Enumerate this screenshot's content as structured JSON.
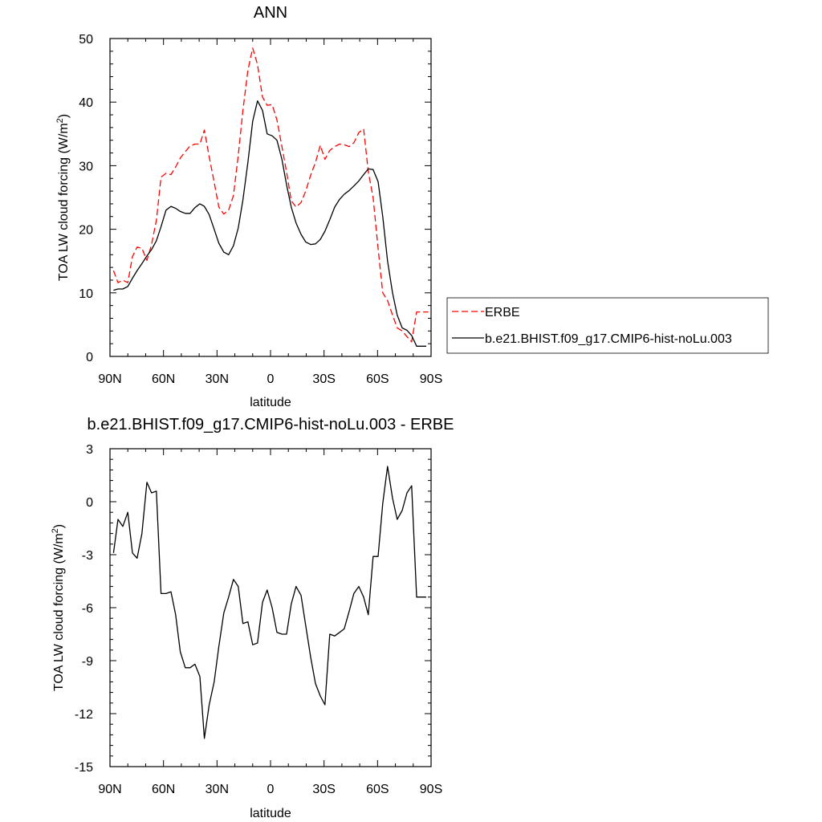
{
  "chart_data": [
    {
      "type": "line",
      "title": "ANN",
      "xlabel": "latitude",
      "ylabel": "TOA LW cloud forcing (W/m",
      "ylabel_sup": "2",
      "ylabel_tail": ")",
      "xlim": [
        90,
        -90
      ],
      "ylim": [
        0,
        50
      ],
      "x_ticks": [
        90,
        60,
        30,
        0,
        -30,
        -60,
        -90
      ],
      "x_tick_labels": [
        "90N",
        "60N",
        "30N",
        "0",
        "30S",
        "60S",
        "90S"
      ],
      "y_ticks": [
        0,
        10,
        20,
        30,
        40,
        50
      ],
      "y_tick_labels": [
        "0",
        "10",
        "20",
        "30",
        "40",
        "50"
      ],
      "legend_position": "right, outside",
      "series": [
        {
          "name": "ERBE",
          "color": "#ff0000",
          "style": "dashed",
          "x": [
            88.0,
            85.5,
            82.8,
            80.0,
            77.4,
            74.8,
            72.1,
            69.3,
            66.7,
            64.0,
            61.4,
            58.6,
            55.8,
            53.2,
            50.6,
            47.8,
            45.1,
            42.4,
            39.6,
            37.1,
            34.4,
            31.6,
            29.0,
            26.2,
            23.5,
            20.8,
            18.1,
            15.5,
            12.7,
            10.0,
            7.3,
            4.5,
            1.9,
            -0.9,
            -3.6,
            -6.4,
            -9.0,
            -11.6,
            -14.3,
            -17.1,
            -19.7,
            -22.5,
            -25.2,
            -27.9,
            -30.5,
            -33.2,
            -36.0,
            -38.7,
            -41.3,
            -44.1,
            -46.7,
            -49.5,
            -52.2,
            -54.8,
            -57.5,
            -60.3,
            -62.9,
            -65.6,
            -68.4,
            -71.0,
            -73.8,
            -76.5,
            -79.1,
            -81.9,
            -84.6,
            -87.3,
            -88.5
          ],
          "y": [
            13.5,
            11.6,
            12.0,
            11.6,
            15.7,
            17.2,
            17.0,
            15.1,
            17.6,
            21.4,
            28.2,
            28.8,
            28.6,
            29.8,
            31.2,
            32.2,
            33.1,
            33.4,
            33.4,
            35.6,
            31.4,
            27.4,
            23.5,
            22.4,
            23.0,
            25.3,
            31.6,
            38.7,
            45.0,
            48.5,
            45.9,
            40.8,
            39.5,
            39.6,
            37.2,
            33.0,
            29.0,
            24.5,
            23.5,
            24.2,
            26.0,
            28.5,
            30.5,
            33.2,
            31.0,
            32.4,
            33.0,
            33.4,
            33.3,
            33.0,
            33.6,
            35.2,
            35.8,
            29.0,
            25.0,
            17.0,
            10.0,
            8.8,
            6.5,
            4.5,
            4.0,
            3.1,
            2.3,
            7.0,
            7.0,
            7.0,
            7.0
          ]
        },
        {
          "name": "b.e21.BHIST.f09_g17.CMIP6-hist-noLu.003",
          "color": "#000000",
          "style": "solid",
          "x": [
            88.0,
            85.5,
            82.8,
            80.0,
            77.4,
            74.8,
            72.1,
            69.3,
            66.7,
            64.0,
            61.4,
            58.6,
            55.8,
            53.2,
            50.6,
            47.8,
            45.1,
            42.4,
            39.6,
            37.1,
            34.4,
            31.6,
            29.0,
            26.2,
            23.5,
            20.8,
            18.1,
            15.5,
            12.7,
            10.0,
            7.3,
            4.5,
            1.9,
            -0.9,
            -3.6,
            -6.4,
            -9.0,
            -11.6,
            -14.3,
            -17.1,
            -19.7,
            -22.5,
            -25.2,
            -27.9,
            -30.5,
            -33.2,
            -36.0,
            -38.7,
            -41.3,
            -44.1,
            -46.7,
            -49.5,
            -52.2,
            -54.8,
            -57.5,
            -60.3,
            -62.9,
            -65.6,
            -68.4,
            -71.0,
            -73.8,
            -76.5,
            -79.1,
            -81.9,
            -84.6,
            -87.3
          ],
          "y": [
            10.4,
            10.6,
            10.6,
            11.0,
            12.3,
            13.5,
            14.6,
            15.8,
            16.8,
            18.2,
            20.4,
            23.0,
            23.6,
            23.3,
            22.8,
            22.5,
            22.5,
            23.4,
            24.0,
            23.6,
            22.3,
            20.0,
            17.8,
            16.4,
            16.0,
            17.4,
            20.2,
            24.6,
            30.5,
            37.0,
            40.2,
            38.7,
            35.0,
            34.7,
            34.0,
            31.0,
            27.0,
            23.5,
            21.0,
            19.2,
            18.0,
            17.6,
            17.7,
            18.4,
            19.7,
            21.5,
            23.5,
            24.7,
            25.5,
            26.1,
            26.8,
            27.6,
            28.6,
            29.5,
            29.4,
            27.5,
            22.0,
            15.0,
            10.0,
            6.5,
            4.5,
            4.1,
            3.3,
            1.6,
            1.6,
            1.6
          ]
        }
      ]
    },
    {
      "type": "line",
      "title": "b.e21.BHIST.f09_g17.CMIP6-hist-noLu.003 - ERBE",
      "xlabel": "latitude",
      "ylabel": "TOA LW cloud forcing (W/m",
      "ylabel_sup": "2",
      "ylabel_tail": ")",
      "xlim": [
        90,
        -90
      ],
      "ylim": [
        -15,
        3
      ],
      "x_ticks": [
        90,
        60,
        30,
        0,
        -30,
        -60,
        -90
      ],
      "x_tick_labels": [
        "90N",
        "60N",
        "30N",
        "0",
        "30S",
        "60S",
        "90S"
      ],
      "y_ticks": [
        3,
        0,
        -3,
        -6,
        -9,
        -12,
        -15
      ],
      "y_tick_labels": [
        "3",
        "0",
        "-3",
        "-6",
        "-9",
        "-12",
        "-15"
      ],
      "series": [
        {
          "color": "#000000",
          "style": "solid",
          "x": [
            88.0,
            85.5,
            82.8,
            80.0,
            77.4,
            74.8,
            72.1,
            69.3,
            66.7,
            64.0,
            61.4,
            58.6,
            55.8,
            53.2,
            50.6,
            47.8,
            45.1,
            42.4,
            39.6,
            37.1,
            34.4,
            31.6,
            29.0,
            26.2,
            23.5,
            20.8,
            18.1,
            15.5,
            12.7,
            10.0,
            7.3,
            4.5,
            1.9,
            -0.9,
            -3.6,
            -6.4,
            -9.0,
            -11.6,
            -14.3,
            -17.1,
            -19.7,
            -22.5,
            -25.2,
            -27.9,
            -30.5,
            -33.2,
            -36.0,
            -38.7,
            -41.3,
            -44.1,
            -46.7,
            -49.5,
            -52.2,
            -54.8,
            -57.5,
            -60.3,
            -62.9,
            -65.6,
            -68.4,
            -71.0,
            -73.8,
            -76.5,
            -79.1,
            -81.9,
            -84.6,
            -87.3
          ],
          "y": [
            -2.9,
            -1.0,
            -1.4,
            -0.6,
            -2.9,
            -3.2,
            -1.8,
            1.1,
            0.5,
            0.6,
            -5.2,
            -5.2,
            -5.1,
            -6.4,
            -8.5,
            -9.4,
            -9.4,
            -9.2,
            -9.9,
            -13.4,
            -11.5,
            -10.2,
            -8.2,
            -6.3,
            -5.4,
            -4.4,
            -4.8,
            -6.9,
            -6.8,
            -8.1,
            -8.0,
            -5.7,
            -5.0,
            -6.0,
            -7.4,
            -7.5,
            -7.5,
            -5.8,
            -4.8,
            -5.3,
            -7.0,
            -8.8,
            -10.3,
            -11.0,
            -11.5,
            -7.5,
            -7.6,
            -7.4,
            -7.2,
            -6.2,
            -5.2,
            -4.8,
            -5.4,
            -6.4,
            -3.1,
            -3.1,
            -0.1,
            2.0,
            0.2,
            -1.0,
            -0.5,
            0.5,
            0.9,
            -5.4,
            -5.4,
            -5.4
          ]
        }
      ]
    }
  ]
}
